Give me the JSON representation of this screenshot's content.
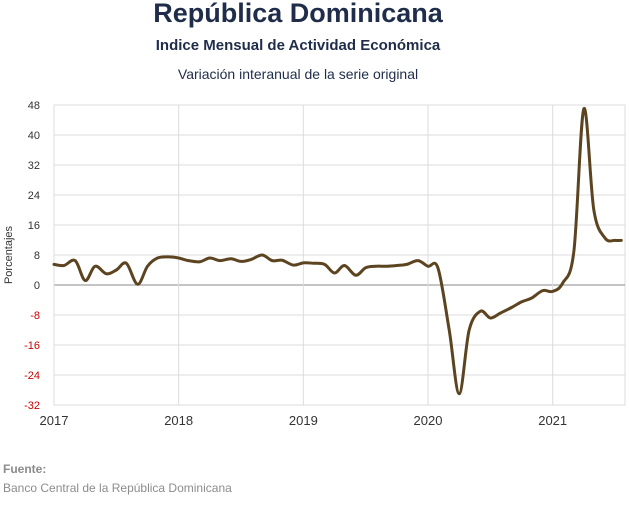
{
  "header": {
    "title": "República Dominicana",
    "subtitle": "Indice Mensual de  Actividad Económica",
    "subtitle2": "Variación interanual de la serie original"
  },
  "footer": {
    "source_label": "Fuente:",
    "source_text": "Banco Central de la República Dominicana"
  },
  "chart_data": {
    "type": "line",
    "title": "",
    "xlabel": "",
    "ylabel": "Porcentajes",
    "ylim": [
      -32,
      48
    ],
    "yticks": [
      48,
      40,
      32,
      24,
      16,
      8,
      0,
      -8,
      -16,
      -24,
      -32
    ],
    "xlim": [
      2017,
      2021.58
    ],
    "xticks": [
      2017,
      2018,
      2019,
      2020,
      2021
    ],
    "grid": true,
    "colors": {
      "line": "#5c4421",
      "zero_line": "#888888",
      "grid": "#dcdcdc",
      "negative_tick": "#cc0000",
      "positive_tick": "#333333"
    },
    "series": [
      {
        "x": [
          2017.0,
          2017.08,
          2017.17,
          2017.25,
          2017.33,
          2017.42,
          2017.5,
          2017.58,
          2017.67,
          2017.75,
          2017.83,
          2017.92,
          2018.0,
          2018.08,
          2018.17,
          2018.25,
          2018.33,
          2018.42,
          2018.5,
          2018.58,
          2018.67,
          2018.75,
          2018.83,
          2018.92,
          2019.0,
          2019.08,
          2019.17,
          2019.25,
          2019.33,
          2019.42,
          2019.5,
          2019.58,
          2019.67,
          2019.75,
          2019.83,
          2019.92,
          2020.0,
          2020.08,
          2020.17,
          2020.25,
          2020.33,
          2020.42,
          2020.5,
          2020.58,
          2020.67,
          2020.75,
          2020.83,
          2020.92,
          2021.0,
          2021.08,
          2021.17,
          2021.25,
          2021.33,
          2021.42,
          2021.5,
          2021.55
        ],
        "values": [
          5.5,
          5.2,
          6.5,
          1.2,
          5.0,
          3.0,
          4.0,
          5.8,
          0.2,
          5.0,
          7.2,
          7.5,
          7.2,
          6.5,
          6.2,
          7.2,
          6.5,
          7.0,
          6.3,
          6.8,
          8.0,
          6.5,
          6.6,
          5.3,
          5.9,
          5.8,
          5.5,
          3.2,
          5.2,
          2.6,
          4.6,
          5.0,
          5.0,
          5.2,
          5.5,
          6.5,
          5.0,
          4.5,
          -12.0,
          -29.0,
          -12.0,
          -7.0,
          -8.8,
          -7.5,
          -6.0,
          -4.5,
          -3.5,
          -1.5,
          -1.7,
          0.5,
          9.0,
          47.0,
          20.0,
          12.5,
          11.9,
          11.9
        ]
      }
    ]
  }
}
